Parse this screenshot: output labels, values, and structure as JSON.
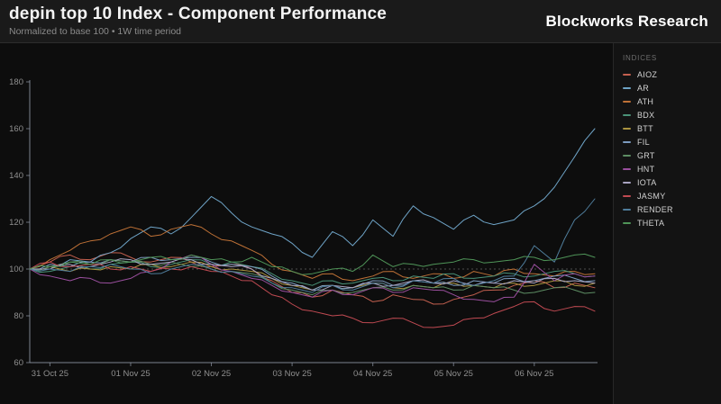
{
  "header": {
    "title": "depin top 10 Index - Component Performance",
    "subtitle": "Normalized to base 100 • 1W time period",
    "brand": "Blockworks Research"
  },
  "legend": {
    "title": "INDICES"
  },
  "ui_colors": {
    "axis": "#9099a8",
    "tick_text": "#8f8f8f",
    "baseline_grid": "#4d4d4d"
  },
  "chart_data": {
    "type": "line",
    "title": "depin top 10 Index - Component Performance",
    "subtitle": "Normalized to base 100 • 1W time period",
    "xlabel": "",
    "ylabel": "",
    "ylim": [
      60,
      180
    ],
    "y_ticks": [
      60,
      80,
      100,
      120,
      140,
      160,
      180
    ],
    "baseline": 100,
    "grid": "baseline-dashed-only",
    "legend_position": "right",
    "x_tick_labels": [
      "31 Oct 25",
      "01 Nov 25",
      "02 Nov 25",
      "03 Nov 25",
      "04 Nov 25",
      "05 Nov 25",
      "06 Nov 25"
    ],
    "points_per_day": 4,
    "first_tick_index": 1,
    "series": [
      {
        "name": "AIOZ",
        "color": "#c4604f",
        "values": [
          100,
          103,
          106,
          104,
          107,
          105,
          103,
          105,
          103,
          101,
          102,
          100,
          95,
          90,
          88,
          91,
          89,
          86,
          89,
          87,
          85,
          87,
          89,
          91,
          93,
          95,
          92,
          94,
          92
        ]
      },
      {
        "name": "AR",
        "color": "#6ea3c6",
        "values": [
          100,
          101,
          104,
          103,
          107,
          113,
          118,
          115,
          122,
          131,
          124,
          118,
          115,
          111,
          105,
          116,
          110,
          121,
          114,
          127,
          122,
          117,
          123,
          119,
          121,
          127,
          135,
          148,
          160
        ]
      },
      {
        "name": "ATH",
        "color": "#bf7136",
        "values": [
          100,
          104,
          108,
          112,
          115,
          118,
          114,
          117,
          119,
          115,
          112,
          108,
          102,
          99,
          96,
          98,
          95,
          97,
          99,
          96,
          98,
          96,
          99,
          97,
          100,
          98,
          97,
          99,
          98
        ]
      },
      {
        "name": "BDX",
        "color": "#4a9278",
        "values": [
          100,
          99,
          101,
          100,
          102,
          103,
          101,
          102,
          104,
          102,
          103,
          101,
          98,
          95,
          93,
          95,
          94,
          96,
          95,
          97,
          96,
          98,
          96,
          97,
          98,
          97,
          99,
          98,
          97
        ]
      },
      {
        "name": "BTT",
        "color": "#ab9440",
        "values": [
          100,
          101,
          99,
          100,
          101,
          100,
          102,
          101,
          103,
          101,
          100,
          99,
          96,
          93,
          91,
          93,
          92,
          94,
          92,
          93,
          92,
          94,
          93,
          92,
          94,
          93,
          95,
          93,
          94
        ]
      },
      {
        "name": "FIL",
        "color": "#7d9cc0",
        "values": [
          100,
          102,
          101,
          103,
          104,
          103,
          105,
          104,
          105,
          103,
          102,
          101,
          97,
          94,
          91,
          93,
          92,
          95,
          93,
          95,
          94,
          93,
          95,
          94,
          96,
          95,
          97,
          96,
          95
        ]
      },
      {
        "name": "GRT",
        "color": "#5d8d63",
        "values": [
          100,
          101,
          103,
          102,
          104,
          103,
          102,
          103,
          101,
          100,
          99,
          98,
          94,
          91,
          89,
          91,
          90,
          92,
          91,
          93,
          92,
          91,
          93,
          92,
          91,
          90,
          92,
          91,
          90
        ]
      },
      {
        "name": "HNT",
        "color": "#9a4f9e",
        "values": [
          100,
          97,
          95,
          96,
          94,
          96,
          99,
          103,
          106,
          102,
          99,
          96,
          93,
          90,
          88,
          91,
          89,
          92,
          90,
          92,
          91,
          89,
          87,
          86,
          88,
          102,
          95,
          98,
          97
        ]
      },
      {
        "name": "IOTA",
        "color": "#a9a4c2",
        "values": [
          100,
          100,
          102,
          101,
          103,
          104,
          102,
          103,
          104,
          102,
          101,
          100,
          96,
          93,
          91,
          93,
          92,
          94,
          93,
          95,
          94,
          95,
          93,
          94,
          95,
          94,
          96,
          95,
          94
        ]
      },
      {
        "name": "JASMY",
        "color": "#c04a52",
        "values": [
          100,
          103,
          101,
          102,
          100,
          101,
          99,
          100,
          101,
          99,
          97,
          95,
          89,
          85,
          82,
          80,
          79,
          77,
          79,
          77,
          75,
          76,
          79,
          81,
          84,
          86,
          82,
          84,
          82
        ]
      },
      {
        "name": "RENDER",
        "color": "#4f7d9b",
        "values": [
          100,
          100,
          99,
          101,
          102,
          100,
          98,
          100,
          102,
          100,
          99,
          97,
          94,
          92,
          90,
          93,
          91,
          94,
          92,
          95,
          94,
          96,
          93,
          95,
          97,
          110,
          103,
          121,
          130
        ]
      },
      {
        "name": "THETA",
        "color": "#4f9458",
        "values": [
          100,
          101,
          103,
          102,
          104,
          103,
          105,
          104,
          106,
          104,
          103,
          105,
          101,
          99,
          98,
          100,
          99,
          106,
          101,
          102,
          102,
          103,
          104,
          103,
          104,
          105,
          104,
          106,
          105
        ]
      }
    ]
  }
}
